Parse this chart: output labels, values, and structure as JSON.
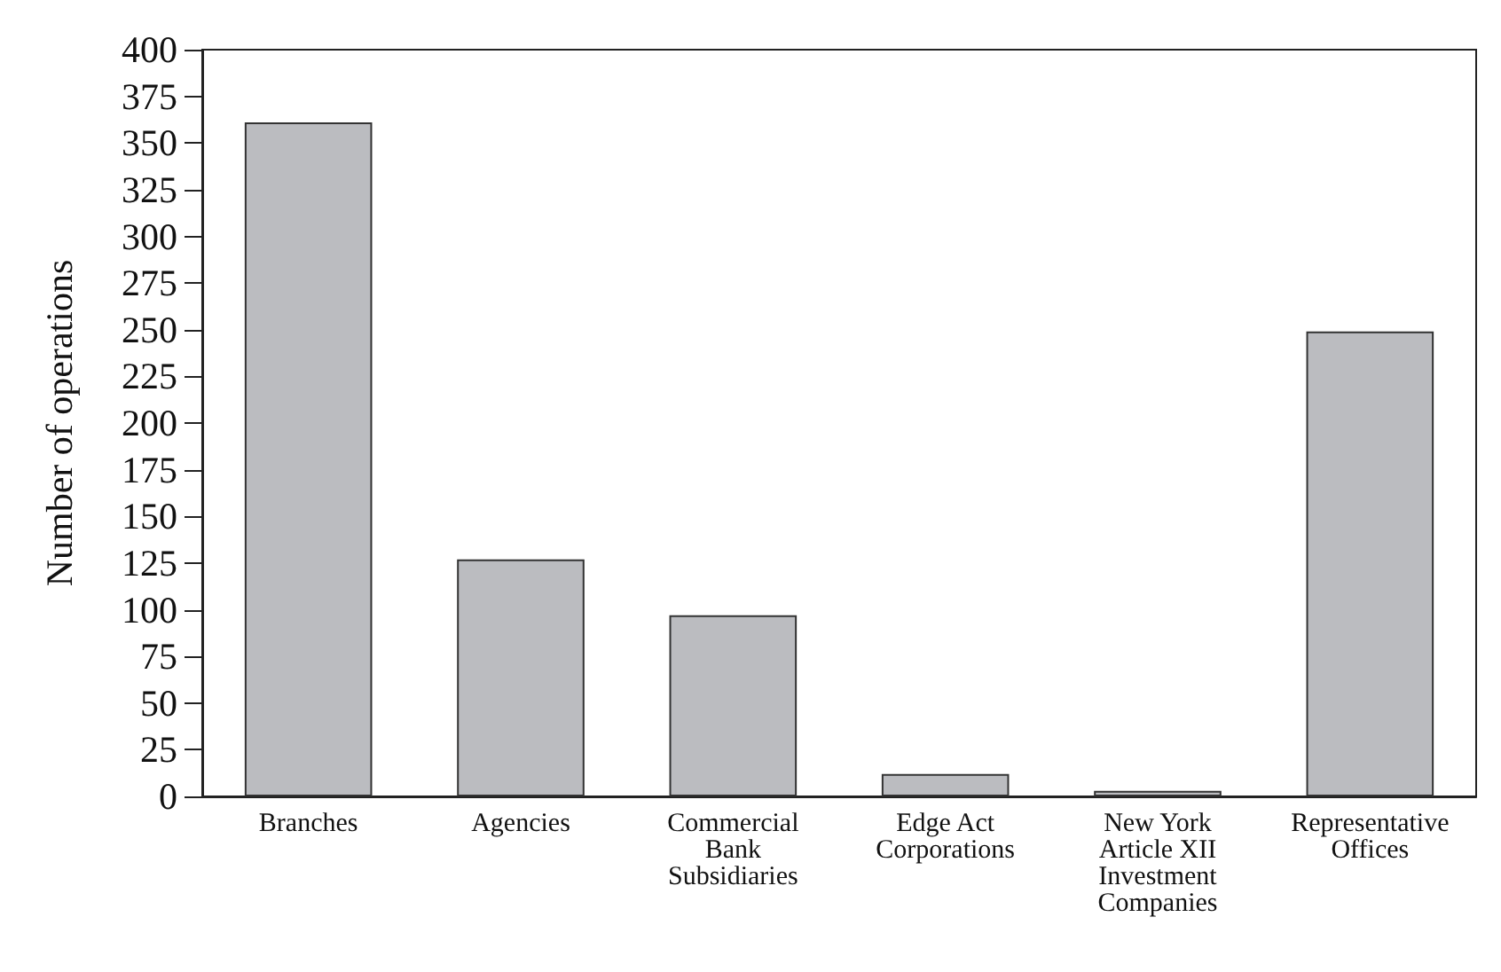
{
  "chart_data": {
    "type": "bar",
    "ylabel": "Number of operations",
    "categories": [
      "Branches",
      "Agencies",
      "Commercial\nBank\nSubsidiaries",
      "Edge Act\nCorporations",
      "New York\nArticle XII\nInvestment\nCompanies",
      "Representative\nOffices"
    ],
    "values": [
      361,
      127,
      97,
      12,
      3,
      249
    ],
    "color": "#bbbcc0",
    "ylim": [
      0,
      400
    ],
    "yticks": [
      0,
      25,
      50,
      75,
      100,
      125,
      150,
      175,
      200,
      225,
      250,
      275,
      300,
      325,
      350,
      375,
      400
    ],
    "grid": false
  }
}
